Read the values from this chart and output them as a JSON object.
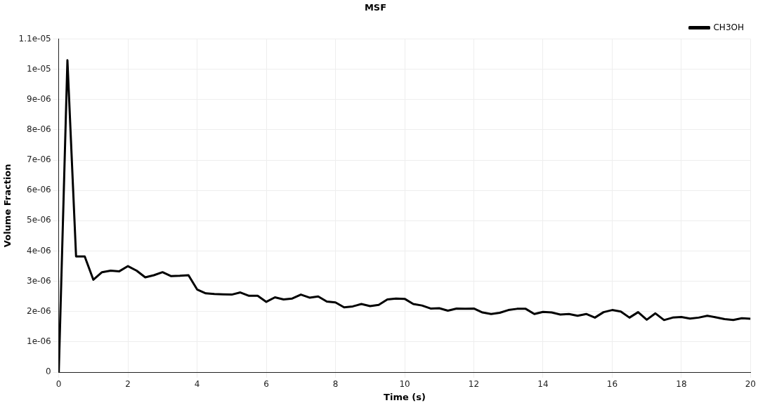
{
  "chart_data": {
    "type": "line",
    "title": "MSF",
    "xlabel": "Time (s)",
    "ylabel": "Volume Fraction",
    "x": [
      0,
      0.25,
      0.5,
      0.75,
      1,
      1.25,
      1.5,
      1.75,
      2,
      2.25,
      2.5,
      2.75,
      3,
      3.25,
      3.5,
      3.75,
      4,
      4.25,
      4.5,
      4.75,
      5,
      5.25,
      5.5,
      5.75,
      6,
      6.25,
      6.5,
      6.75,
      7,
      7.25,
      7.5,
      7.75,
      8,
      8.25,
      8.5,
      8.75,
      9,
      9.25,
      9.5,
      9.75,
      10,
      10.25,
      10.5,
      10.75,
      11,
      11.25,
      11.5,
      11.75,
      12,
      12.25,
      12.5,
      12.75,
      13,
      13.25,
      13.5,
      13.75,
      14,
      14.25,
      14.5,
      14.75,
      15,
      15.25,
      15.5,
      15.75,
      16,
      16.25,
      16.5,
      16.75,
      17,
      17.25,
      17.5,
      17.75,
      18,
      18.25,
      18.5,
      18.75,
      19,
      19.25,
      19.5,
      19.75,
      20
    ],
    "series": [
      {
        "name": "CH3OH",
        "color": "#000000",
        "values": [
          0,
          1.03e-05,
          3.82e-06,
          3.82e-06,
          3.05e-06,
          3.3e-06,
          3.35e-06,
          3.33e-06,
          3.5e-06,
          3.35e-06,
          3.13e-06,
          3.2e-06,
          3.3e-06,
          3.17e-06,
          3.18e-06,
          3.2e-06,
          2.73e-06,
          2.6e-06,
          2.58e-06,
          2.57e-06,
          2.56e-06,
          2.63e-06,
          2.52e-06,
          2.52e-06,
          2.32e-06,
          2.47e-06,
          2.4e-06,
          2.43e-06,
          2.56e-06,
          2.46e-06,
          2.5e-06,
          2.33e-06,
          2.3e-06,
          2.14e-06,
          2.17e-06,
          2.25e-06,
          2.18e-06,
          2.22e-06,
          2.4e-06,
          2.43e-06,
          2.42e-06,
          2.25e-06,
          2.2e-06,
          2.1e-06,
          2.11e-06,
          2.03e-06,
          2.1e-06,
          2.09e-06,
          2.1e-06,
          1.97e-06,
          1.92e-06,
          1.96e-06,
          2.05e-06,
          2.09e-06,
          2.09e-06,
          1.92e-06,
          1.99e-06,
          1.97e-06,
          1.9e-06,
          1.92e-06,
          1.86e-06,
          1.92e-06,
          1.8e-06,
          1.98e-06,
          2.05e-06,
          2e-06,
          1.8e-06,
          1.98e-06,
          1.73e-06,
          1.94e-06,
          1.72e-06,
          1.8e-06,
          1.82e-06,
          1.77e-06,
          1.8e-06,
          1.86e-06,
          1.81e-06,
          1.75e-06,
          1.72e-06,
          1.78e-06,
          1.76e-06
        ]
      }
    ],
    "xlim": [
      0,
      20
    ],
    "xticks": [
      0,
      2,
      4,
      6,
      8,
      10,
      12,
      14,
      16,
      18,
      20
    ],
    "ylim": [
      0,
      1.1e-05
    ],
    "yticks": [
      0,
      {
        "value": 1e-06,
        "label": "1e-06"
      },
      {
        "value": 2e-06,
        "label": "2e-06"
      },
      {
        "value": 3e-06,
        "label": "3e-06"
      },
      {
        "value": 4e-06,
        "label": "4e-06"
      },
      {
        "value": 5e-06,
        "label": "5e-06"
      },
      {
        "value": 6e-06,
        "label": "6e-06"
      },
      {
        "value": 7e-06,
        "label": "7e-06"
      },
      {
        "value": 8e-06,
        "label": "8e-06"
      },
      {
        "value": 9e-06,
        "label": "9e-06"
      },
      {
        "value": 1e-05,
        "label": "1e-05"
      },
      {
        "value": 1.1e-05,
        "label": "1.1e-05"
      }
    ],
    "grid": true,
    "legend": "top right",
    "marker": "none",
    "line_style": "solid"
  }
}
